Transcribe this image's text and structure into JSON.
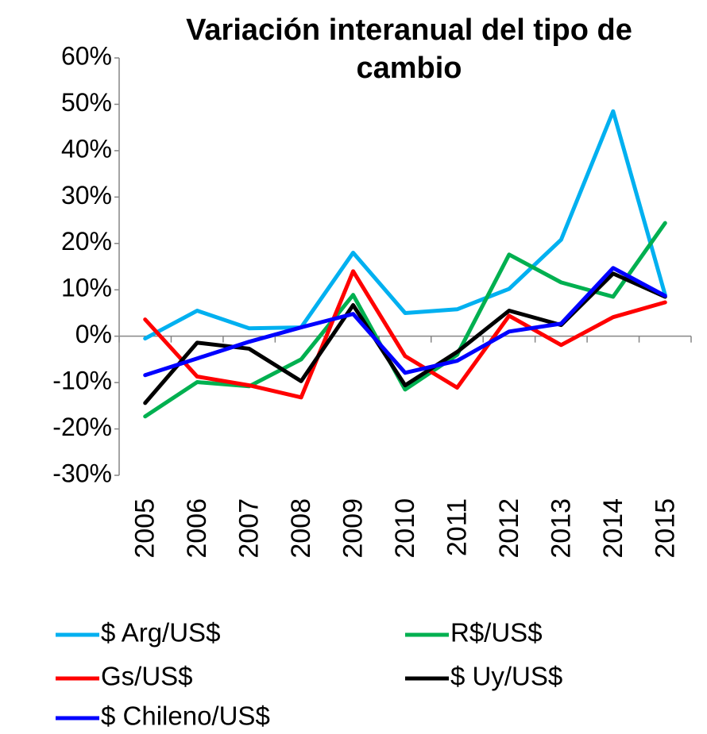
{
  "chart_data": {
    "type": "line",
    "title": "Variación interanual del tipo de cambio",
    "categories": [
      "2005",
      "2006",
      "2007",
      "2008",
      "2009",
      "2010",
      "2011",
      "2012",
      "2013",
      "2014",
      "2015"
    ],
    "series": [
      {
        "name": "$ Arg/US$",
        "color": "#00b0f0",
        "values": [
          -0.5,
          5.5,
          1.7,
          1.9,
          18,
          5,
          5.8,
          10.2,
          20.8,
          48.5,
          8.9
        ]
      },
      {
        "name": "R$/US$",
        "color": "#00b050",
        "values": [
          -17.3,
          -9.9,
          -10.8,
          -5,
          8.9,
          -11.5,
          -4,
          17.6,
          11.6,
          8.5,
          24.4
        ]
      },
      {
        "name": "Gs/US$",
        "color": "#ff0000",
        "values": [
          3.6,
          -8.7,
          -10.6,
          -13.2,
          14,
          -4.3,
          -11.1,
          4.4,
          -1.9,
          4.1,
          7.3
        ]
      },
      {
        "name": "$ Uy/US$",
        "color": "#000000",
        "values": [
          -14.4,
          -1.4,
          -2.7,
          -9.7,
          6.7,
          -10.6,
          -3.4,
          5.5,
          2.4,
          13.5,
          8.5
        ]
      },
      {
        "name": "$ Chileno/US$",
        "color": "#0000ff",
        "values": [
          -8.4,
          -4.8,
          -1.2,
          1.9,
          4.8,
          -7.9,
          -5.3,
          1,
          2.7,
          14.7,
          8.7
        ]
      }
    ],
    "ylim": [
      -30,
      60
    ],
    "yticks": [
      {
        "value": -30,
        "label": "-30%"
      },
      {
        "value": -20,
        "label": "-20%"
      },
      {
        "value": -10,
        "label": "-10%"
      },
      {
        "value": 0,
        "label": "0%"
      },
      {
        "value": 10,
        "label": "10%"
      },
      {
        "value": 20,
        "label": "20%"
      },
      {
        "value": 30,
        "label": "30%"
      },
      {
        "value": 40,
        "label": "40%"
      },
      {
        "value": 50,
        "label": "50%"
      },
      {
        "value": 60,
        "label": "60%"
      }
    ],
    "grid": false,
    "legend": "bottom"
  }
}
